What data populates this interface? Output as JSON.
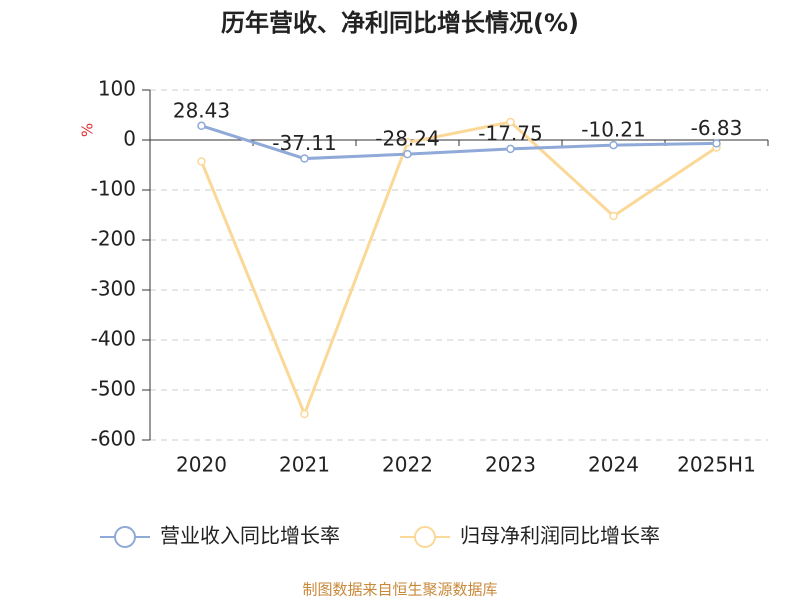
{
  "chart_data": {
    "type": "line",
    "title": "历年营收、净利同比增长情况(%)",
    "y_label": "%",
    "source": "制图数据来自恒生聚源数据库",
    "categories": [
      "2020",
      "2021",
      "2022",
      "2023",
      "2024",
      "2025H1"
    ],
    "series": [
      {
        "name": "营业收入同比增长率",
        "color": "#8fa9d8",
        "values": [
          28.43,
          -37.11,
          -28.24,
          -17.75,
          -10.21,
          -6.83
        ],
        "show_labels": true
      },
      {
        "name": "归母净利润同比增长率",
        "color": "#fbd898",
        "values": [
          -43,
          -548,
          -5,
          36,
          -152,
          -15
        ],
        "show_labels": false
      }
    ],
    "ylim": [
      -600,
      100
    ],
    "yticks": [
      -600,
      -500,
      -400,
      -300,
      -200,
      -100,
      0,
      100
    ],
    "grid": true,
    "legend_position": "bottom"
  }
}
